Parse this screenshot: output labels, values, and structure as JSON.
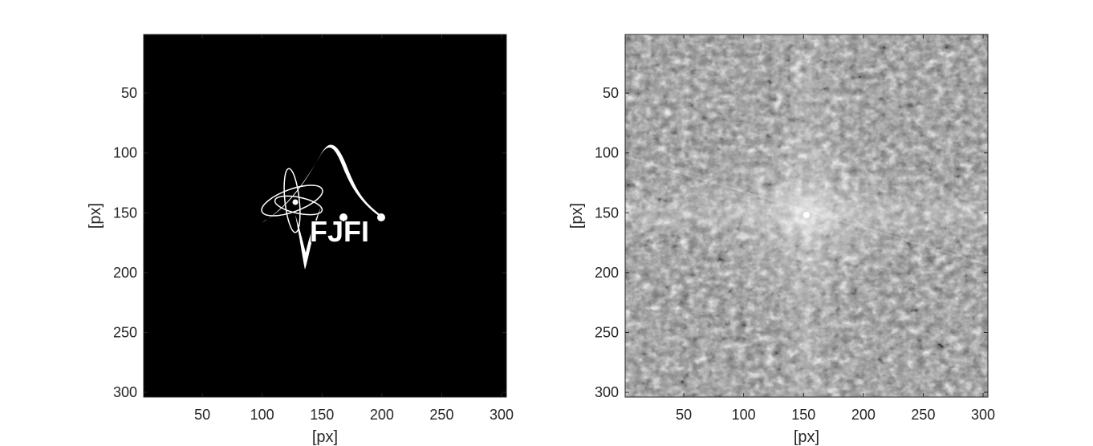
{
  "figure": {
    "panels": [
      {
        "id": "left",
        "type": "image",
        "content": "binary logo image",
        "logo_text": "FJFI",
        "xlabel": "[px]",
        "ylabel": "[px]",
        "xticks": [
          "50",
          "100",
          "150",
          "200",
          "250",
          "300"
        ],
        "yticks": [
          "50",
          "100",
          "150",
          "200",
          "250",
          "300"
        ],
        "x_range": [
          1,
          304
        ],
        "y_range": [
          1,
          304
        ],
        "colormap": "gray"
      },
      {
        "id": "right",
        "type": "image",
        "content": "log-magnitude Fourier spectrum",
        "xlabel": "[px]",
        "ylabel": "[px]",
        "xticks": [
          "50",
          "100",
          "150",
          "200",
          "250",
          "300"
        ],
        "yticks": [
          "50",
          "100",
          "150",
          "200",
          "250",
          "300"
        ],
        "x_range": [
          1,
          304
        ],
        "y_range": [
          1,
          304
        ],
        "colormap": "gray"
      }
    ]
  }
}
